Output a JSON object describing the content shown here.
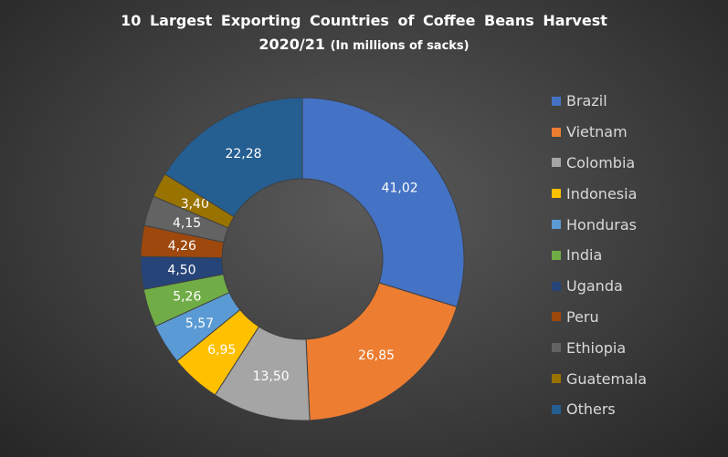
{
  "chart_data": {
    "type": "pie",
    "title": "10 Largest Exporting Countries of Coffee Beans Harvest",
    "title_line2": "2020/21",
    "subtitle": "(In millions of sacks)",
    "legend_position": "right",
    "donut": true,
    "categories": [
      "Brazil",
      "Vietnam",
      "Colombia",
      "Indonesia",
      "Honduras",
      "India",
      "Uganda",
      "Peru",
      "Ethiopia",
      "Guatemala",
      "Others"
    ],
    "values": [
      41.02,
      26.85,
      13.5,
      6.95,
      5.57,
      5.26,
      4.5,
      4.26,
      4.15,
      3.4,
      22.28
    ],
    "value_labels": [
      "41,02",
      "26,85",
      "13,50",
      "6,95",
      "5,57",
      "5,26",
      "4,50",
      "4,26",
      "4,15",
      "3,40",
      "22,28"
    ],
    "colors": [
      "#4472c4",
      "#ed7d31",
      "#a5a5a5",
      "#ffc000",
      "#5b9bd5",
      "#70ad47",
      "#264478",
      "#9e480e",
      "#636363",
      "#997300",
      "#255e91"
    ]
  }
}
